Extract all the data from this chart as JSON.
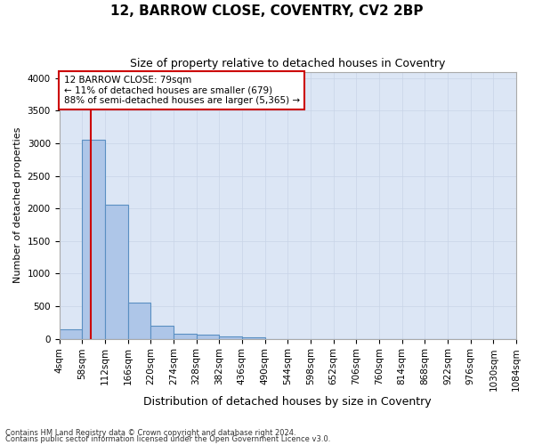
{
  "title": "12, BARROW CLOSE, COVENTRY, CV2 2BP",
  "subtitle": "Size of property relative to detached houses in Coventry",
  "xlabel": "Distribution of detached houses by size in Coventry",
  "ylabel": "Number of detached properties",
  "bin_edges": [
    4,
    58,
    112,
    166,
    220,
    274,
    328,
    382,
    436,
    490,
    544,
    598,
    652,
    706,
    760,
    814,
    868,
    922,
    976,
    1030,
    1084
  ],
  "bar_heights": [
    140,
    3060,
    2060,
    560,
    200,
    80,
    60,
    40,
    15,
    0,
    0,
    0,
    0,
    0,
    0,
    0,
    0,
    0,
    0,
    0
  ],
  "bar_color": "#aec6e8",
  "bar_edgecolor": "#5a8fc2",
  "bar_linewidth": 0.8,
  "property_size": 79,
  "vline_color": "#cc0000",
  "vline_linewidth": 1.5,
  "ylim": [
    0,
    4100
  ],
  "yticks": [
    0,
    500,
    1000,
    1500,
    2000,
    2500,
    3000,
    3500,
    4000
  ],
  "annotation_text": "12 BARROW CLOSE: 79sqm\n← 11% of detached houses are smaller (679)\n88% of semi-detached houses are larger (5,365) →",
  "annotation_box_color": "#ffffff",
  "annotation_box_edgecolor": "#cc0000",
  "annotation_text_fontsize": 7.5,
  "grid_color": "#c8d4e8",
  "background_color": "#dce6f5",
  "fig_background_color": "#ffffff",
  "footer1": "Contains HM Land Registry data © Crown copyright and database right 2024.",
  "footer2": "Contains public sector information licensed under the Open Government Licence v3.0.",
  "title_fontsize": 11,
  "subtitle_fontsize": 9,
  "xlabel_fontsize": 9,
  "ylabel_fontsize": 8,
  "tick_fontsize": 7.5
}
